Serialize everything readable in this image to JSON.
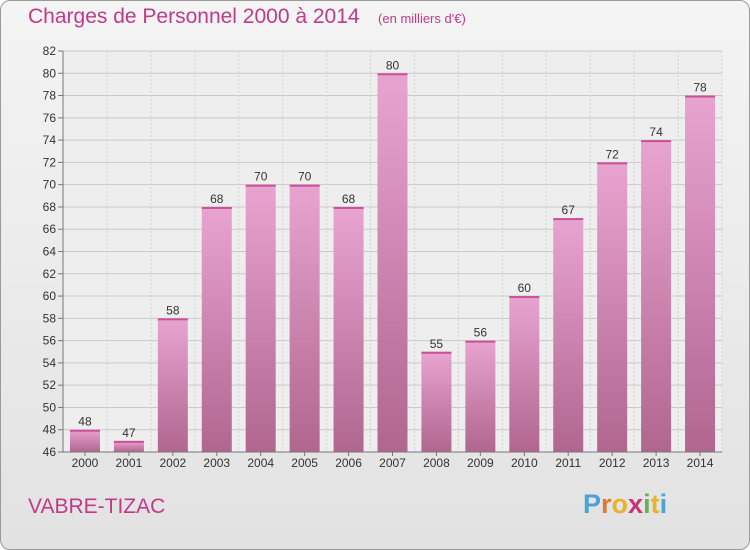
{
  "header": {
    "title": "Charges de Personnel 2000 à 2014",
    "unit_note": "(en milliers d'€)"
  },
  "footer": {
    "commune": "VABRE-TIZAC",
    "logo_letters": [
      "P",
      "r",
      "o",
      "x",
      "i",
      "t",
      "i"
    ],
    "logo_colors": [
      "#4aa3d8",
      "#e0792f",
      "#e8b32a",
      "#c8327a",
      "#6ab04c",
      "#e8b32a",
      "#4aa3d8"
    ]
  },
  "colors": {
    "accent": "#c03a8a",
    "bar_top": "#e8a4d0",
    "bar_bottom": "#b0668f"
  },
  "chart_data": {
    "type": "bar",
    "categories": [
      "2000",
      "2001",
      "2002",
      "2003",
      "2004",
      "2005",
      "2006",
      "2007",
      "2008",
      "2009",
      "2010",
      "2011",
      "2012",
      "2013",
      "2014"
    ],
    "values": [
      48,
      47,
      58,
      68,
      70,
      70,
      68,
      80,
      55,
      56,
      60,
      67,
      72,
      74,
      78
    ],
    "ylim": [
      46,
      82
    ],
    "yticks": [
      46,
      48,
      50,
      52,
      54,
      56,
      58,
      60,
      62,
      64,
      66,
      68,
      70,
      72,
      74,
      76,
      78,
      80,
      82
    ],
    "grid": true,
    "data_labels": true
  }
}
